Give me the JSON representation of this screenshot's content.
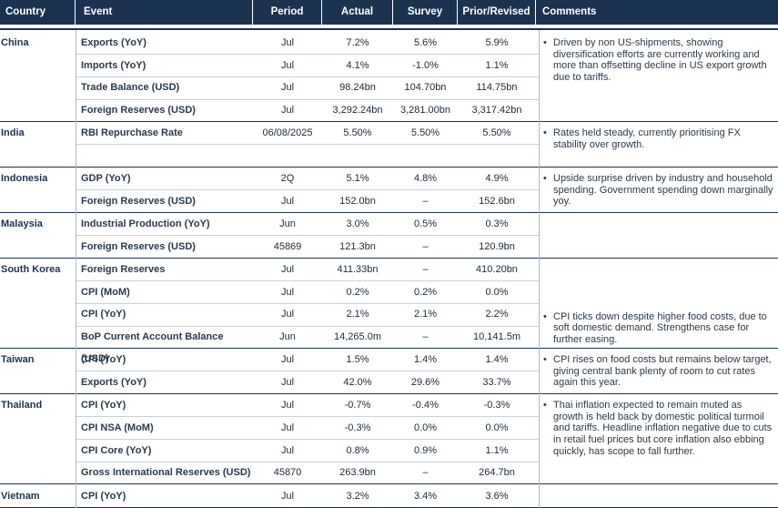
{
  "headers": {
    "country": "Country",
    "event": "Event",
    "period": "Period",
    "actual": "Actual",
    "survey": "Survey",
    "prior": "Prior/Revised",
    "comments": "Comments"
  },
  "bullet": "•",
  "groups": [
    {
      "country": "China",
      "rows": [
        {
          "event": "Exports (YoY)",
          "period": "Jul",
          "actual": "7.2%",
          "survey": "5.6%",
          "prior": "5.9%"
        },
        {
          "event": "Imports (YoY)",
          "period": "Jul",
          "actual": "4.1%",
          "survey": "-1.0%",
          "prior": "1.1%"
        },
        {
          "event": "Trade Balance (USD)",
          "period": "Jul",
          "actual": "98.24bn",
          "survey": "104.70bn",
          "prior": "114.75bn"
        },
        {
          "event": "Foreign Reserves (USD)",
          "period": "Jul",
          "actual": "3,292.24bn",
          "survey": "3,281.00bn",
          "prior": "3,317.42bn"
        }
      ],
      "comment": "Driven by non US-shipments, showing diversification efforts are currently working and more than offsetting decline in US export growth due to tariffs."
    },
    {
      "country": "India",
      "rows": [
        {
          "event": "RBI Repurchase Rate",
          "period": "06/08/2025",
          "actual": "5.50%",
          "survey": "5.50%",
          "prior": "5.50%"
        },
        {
          "event": "",
          "period": "",
          "actual": "",
          "survey": "",
          "prior": ""
        }
      ],
      "comment": "Rates held steady, currently prioritising FX stability over growth."
    },
    {
      "country": "Indonesia",
      "rows": [
        {
          "event": "GDP (YoY)",
          "period": "2Q",
          "actual": "5.1%",
          "survey": "4.8%",
          "prior": "4.9%"
        },
        {
          "event": "Foreign Reserves (USD)",
          "period": "Jul",
          "actual": "152.0bn",
          "survey": "–",
          "prior": "152.6bn"
        }
      ],
      "comment": "Upside surprise driven by industry and household spending. Government spending down marginally yoy."
    },
    {
      "country": "Malaysia",
      "rows": [
        {
          "event": "Industrial Production (YoY)",
          "period": "Jun",
          "actual": "3.0%",
          "survey": "0.5%",
          "prior": "0.3%"
        },
        {
          "event": "Foreign Reserves (USD)",
          "period": "45869",
          "actual": "121.3bn",
          "survey": "–",
          "prior": "120.9bn"
        }
      ],
      "comment": ""
    },
    {
      "country": "South Korea",
      "rows": [
        {
          "event": "Foreign Reserves",
          "period": "Jul",
          "actual": "411.33bn",
          "survey": "–",
          "prior": "410.20bn"
        },
        {
          "event": "CPI (MoM)",
          "period": "Jul",
          "actual": "0.2%",
          "survey": "0.2%",
          "prior": "0.0%"
        },
        {
          "event": "CPI (YoY)",
          "period": "Jul",
          "actual": "2.1%",
          "survey": "2.1%",
          "prior": "2.2%"
        },
        {
          "event": "BoP Current Account Balance (USD)",
          "period": "Jun",
          "actual": "14,265.0m",
          "survey": "–",
          "prior": "10,141.5m"
        }
      ],
      "comment": "CPI ticks down despite higher food costs, due to soft domestic demand. Strengthens case for further easing."
    },
    {
      "country": "Taiwan",
      "rows": [
        {
          "event": "CPI (YoY)",
          "period": "Jul",
          "actual": "1.5%",
          "survey": "1.4%",
          "prior": "1.4%"
        },
        {
          "event": "Exports (YoY)",
          "period": "Jul",
          "actual": "42.0%",
          "survey": "29.6%",
          "prior": "33.7%"
        }
      ],
      "comment": "CPI rises on food costs but remains below target, giving central bank plenty of room to cut rates again this year."
    },
    {
      "country": "Thailand",
      "rows": [
        {
          "event": "CPI (YoY)",
          "period": "Jul",
          "actual": "-0.7%",
          "survey": "-0.4%",
          "prior": "-0.3%"
        },
        {
          "event": "CPI NSA (MoM)",
          "period": "Jul",
          "actual": "-0.3%",
          "survey": "0.0%",
          "prior": "0.0%"
        },
        {
          "event": "CPI Core (YoY)",
          "period": "Jul",
          "actual": "0.8%",
          "survey": "0.9%",
          "prior": "1.1%"
        },
        {
          "event": "Gross International Reserves (USD)",
          "period": "45870",
          "actual": "263.9bn",
          "survey": "–",
          "prior": "264.7bn"
        }
      ],
      "comment": "Thai inflation expected to remain muted as growth is held back by domestic political turmoil and tariffs. Headline inflation negative due to cuts in retail fuel prices but core inflation also ebbing quickly, has scope to fall further."
    },
    {
      "country": "Vietnam",
      "rows": [
        {
          "event": "CPI (YoY)",
          "period": "Jul",
          "actual": "3.2%",
          "survey": "3.4%",
          "prior": "3.6%"
        }
      ],
      "comment": ""
    }
  ]
}
